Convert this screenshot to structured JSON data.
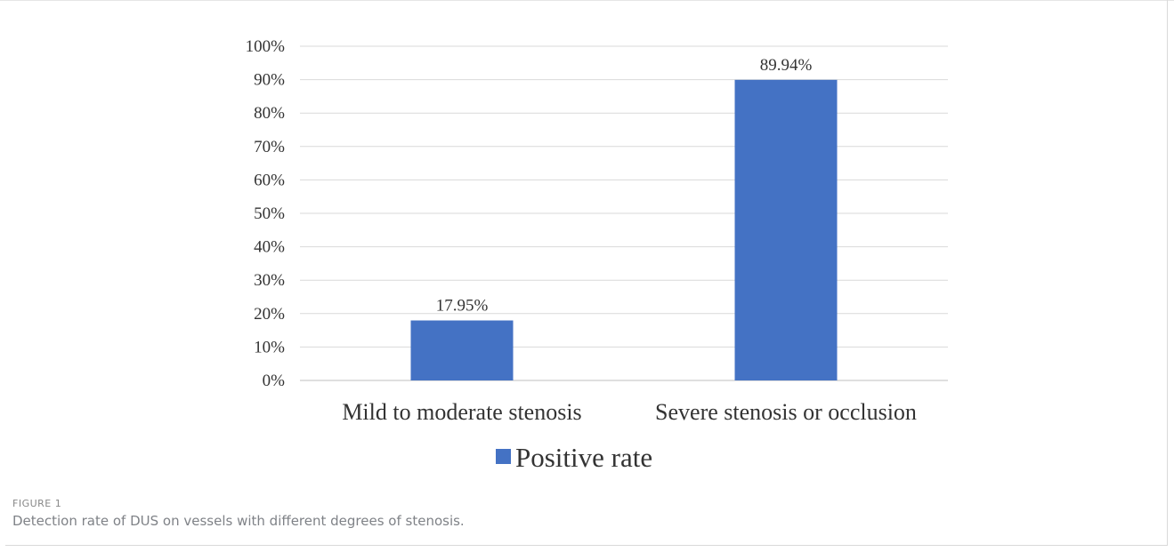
{
  "chart_data": {
    "type": "bar",
    "categories": [
      "Mild to moderate stenosis",
      "Severe stenosis or occlusion"
    ],
    "series": [
      {
        "name": "Positive rate",
        "values": [
          17.95,
          89.94
        ],
        "color": "#4472c4"
      }
    ],
    "data_labels": [
      "17.95%",
      "89.94%"
    ],
    "y_ticks": [
      "0%",
      "10%",
      "20%",
      "30%",
      "40%",
      "50%",
      "60%",
      "70%",
      "80%",
      "90%",
      "100%"
    ],
    "ylim": [
      0,
      100
    ],
    "grid": true,
    "legend_position": "bottom"
  },
  "figure": {
    "number": "FIGURE 1",
    "caption": "Detection rate of DUS on vessels with different degrees of stenosis."
  }
}
